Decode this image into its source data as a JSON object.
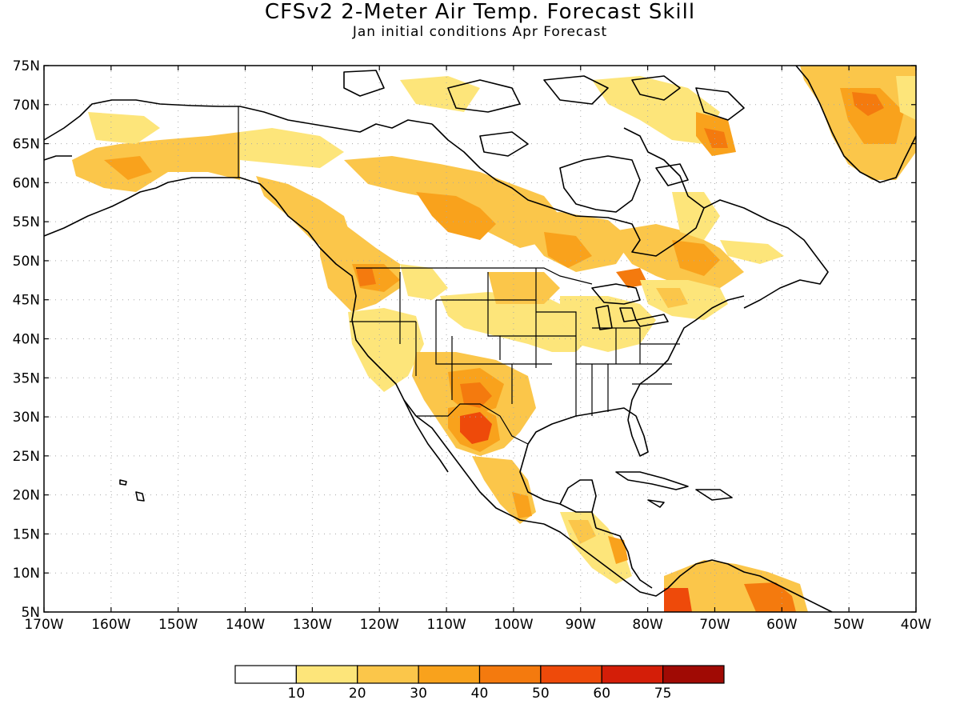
{
  "title": "CFSv2 2-Meter Air Temp. Forecast Skill",
  "subtitle": "Jan initial conditions  Apr Forecast",
  "lat_labels": [
    "75N",
    "70N",
    "65N",
    "60N",
    "55N",
    "50N",
    "45N",
    "40N",
    "35N",
    "30N",
    "25N",
    "20N",
    "15N",
    "10N",
    "5N"
  ],
  "lon_labels": [
    "170W",
    "160W",
    "150W",
    "140W",
    "130W",
    "120W",
    "110W",
    "100W",
    "90W",
    "80W",
    "70W",
    "60W",
    "50W",
    "40W"
  ],
  "extent": {
    "lon_min": -170,
    "lon_max": -40,
    "lat_min": 5,
    "lat_max": 75
  },
  "grid": "dotted",
  "colorbar": {
    "labels": [
      "10",
      "20",
      "30",
      "40",
      "50",
      "60",
      "75"
    ],
    "colors": [
      "#ffffff",
      "#fde57a",
      "#fbc64a",
      "#f9a21c",
      "#f47a0e",
      "#ee4a0a",
      "#d41e08",
      "#a00a04"
    ]
  }
}
